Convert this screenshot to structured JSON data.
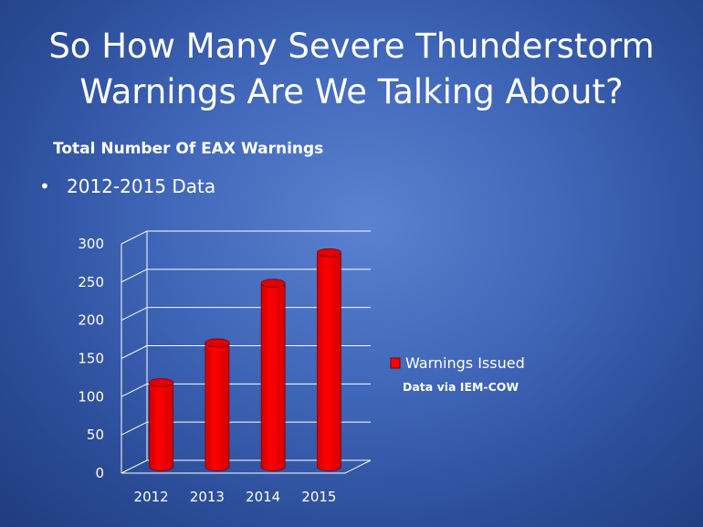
{
  "slide": {
    "title_line1": "So How Many Severe Thunderstorm",
    "title_line2": "Warnings Are We Talking About?",
    "subtitle": "Total Number Of EAX Warnings",
    "bullet": "2012-2015 Data"
  },
  "colors": {
    "bar": "#ff0000",
    "bar_top": "#e00000",
    "gridline": "#ffffff",
    "text": "#ffffff"
  },
  "chart_data": {
    "type": "bar",
    "style": "3d-cylinder",
    "categories": [
      "2012",
      "2013",
      "2014",
      "2015"
    ],
    "series": [
      {
        "name": "Warnings Issued",
        "values": [
          110,
          162,
          240,
          280
        ]
      }
    ],
    "ylim": [
      0,
      300
    ],
    "yticks": [
      0,
      50,
      100,
      150,
      200,
      250,
      300
    ],
    "grid": true,
    "legend_position": "right",
    "annotation": "Data via IEM-COW"
  }
}
